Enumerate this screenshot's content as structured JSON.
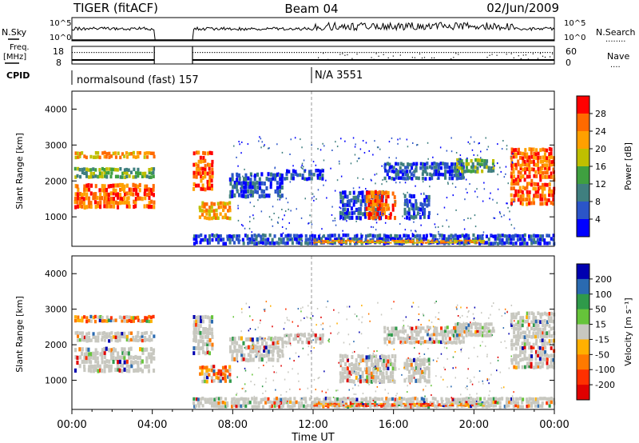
{
  "header": {
    "radar": "TIGER (fitACF)",
    "beam": "Beam 04",
    "date": "02/Jun/2009"
  },
  "panels": {
    "nsky_label": "N.Sky",
    "nsearch_label": "N.Search",
    "nsearch_dots": "........",
    "freq_label_1": "Freq.",
    "freq_label_2": "[MHz]",
    "nave_label": "Nave",
    "nave_dots": "....",
    "cpid_label": "CPID",
    "left_ticks_top": [
      "10^5",
      "10^0"
    ],
    "right_ticks_top": [
      "10^5",
      "10^0"
    ],
    "left_ticks_freq": [
      "18",
      "8"
    ],
    "right_ticks_nave": [
      "60",
      "0"
    ],
    "cpid_program": "normalsound (fast) 157",
    "cpid_program_2": "N/A 3551"
  },
  "chart_data": [
    {
      "type": "heatmap",
      "name": "power",
      "ylabel": "Slant Range [km]",
      "yticks": [
        "1000",
        "2000",
        "3000",
        "4000"
      ],
      "ylim": [
        180,
        4500
      ],
      "colorbar_label": "Power [dB]",
      "colorbar_ticks": [
        "4",
        "8",
        "12",
        "16",
        "20",
        "24",
        "28"
      ],
      "colors": [
        "#0000ff",
        "#2b55c8",
        "#3f7f7f",
        "#3fa040",
        "#bfbf00",
        "#ffa000",
        "#ff6a00",
        "#ff0000"
      ]
    },
    {
      "type": "heatmap",
      "name": "velocity",
      "ylabel": "Slant Range [km]",
      "yticks": [
        "1000",
        "2000",
        "3000",
        "4000"
      ],
      "ylim": [
        180,
        4500
      ],
      "colorbar_label": "Velocity [m s⁻¹]",
      "colorbar_ticks": [
        "200",
        "100",
        "50",
        "15",
        "-15",
        "-50",
        "-100",
        "-200"
      ],
      "colors": [
        "#0000b0",
        "#2a6ab0",
        "#2f9a4a",
        "#66c43a",
        "#c8c8c0",
        "#ffb000",
        "#ff7a00",
        "#ff3000",
        "#e00000"
      ]
    }
  ],
  "xaxis": {
    "label": "Time UT",
    "ticks": [
      "00:00",
      "04:00",
      "08:00",
      "12:00",
      "16:00",
      "20:00",
      "00:00"
    ]
  }
}
